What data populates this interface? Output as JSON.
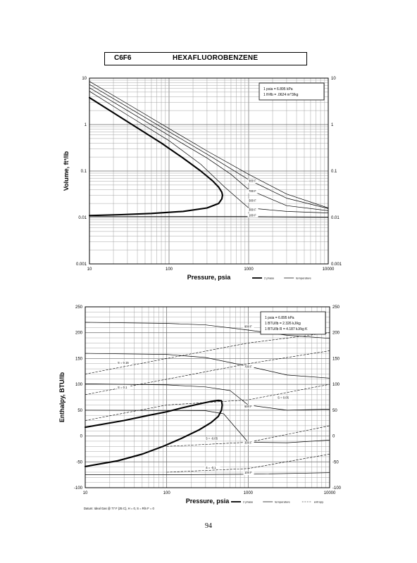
{
  "header": {
    "formula": "C6F6",
    "name": "HEXAFLUOROBENZENE"
  },
  "page_number": "94",
  "chart_data": [
    {
      "type": "line",
      "xlabel": "Pressure,  psia",
      "ylabel": "Volume, ft^3/lb",
      "xscale": "log",
      "yscale": "log",
      "xlim": [
        10,
        10000
      ],
      "ylim": [
        0.001,
        10
      ],
      "x_ticks": [
        "10",
        "100",
        "1000",
        "10000"
      ],
      "y_ticks": [
        "0.001",
        "0.01",
        "0.1",
        "1",
        "10"
      ],
      "grid": true,
      "conversion_box": [
        "1 psia = 6.895 kPa",
        "1 ft^3/lb = .0624 m^3/kg"
      ],
      "legend": {
        "position": "below-right",
        "entries": [
          {
            "label": "2 phase",
            "style": "thick"
          },
          {
            "label": "temperature",
            "style": "thin"
          }
        ]
      },
      "series": [
        {
          "name": "2 phase",
          "style": "thick",
          "x": [
            10,
            20,
            40,
            80,
            150,
            250,
            350,
            420,
            460,
            470,
            460,
            420,
            300,
            150,
            60,
            25,
            10
          ],
          "y": [
            3.8,
            1.8,
            0.85,
            0.4,
            0.19,
            0.1,
            0.062,
            0.045,
            0.035,
            0.03,
            0.025,
            0.02,
            0.016,
            0.0135,
            0.0122,
            0.0115,
            0.011
          ]
        },
        {
          "name": "100 F",
          "style": "thin",
          "x": [
            10,
            100,
            1000,
            10000
          ],
          "y": [
            0.0106,
            0.01055,
            0.0105,
            0.0102
          ]
        },
        {
          "name": "300 F",
          "style": "thin",
          "x": [
            10,
            30,
            100,
            250,
            500,
            1000,
            3000,
            10000
          ],
          "y": [
            5.2,
            1.6,
            0.45,
            0.14,
            0.045,
            0.016,
            0.0135,
            0.0125
          ]
        },
        {
          "name": "500 F",
          "style": "thin",
          "x": [
            10,
            30,
            100,
            300,
            600,
            1000,
            3000,
            10000
          ],
          "y": [
            6.2,
            2.0,
            0.58,
            0.19,
            0.085,
            0.04,
            0.018,
            0.014
          ]
        },
        {
          "name": "700 F",
          "style": "thin",
          "x": [
            10,
            30,
            100,
            300,
            1000,
            3000,
            10000
          ],
          "y": [
            7.3,
            2.4,
            0.7,
            0.23,
            0.065,
            0.026,
            0.0155
          ]
        },
        {
          "name": "900 F",
          "style": "thin",
          "x": [
            10,
            30,
            100,
            300,
            1000,
            3000,
            10000
          ],
          "y": [
            8.5,
            2.8,
            0.82,
            0.27,
            0.085,
            0.032,
            0.016
          ]
        }
      ],
      "curve_labels": [
        {
          "text": "900 F",
          "x": 1000,
          "y": 0.058
        },
        {
          "text": "700 F",
          "x": 1000,
          "y": 0.035
        },
        {
          "text": "500 F",
          "x": 1000,
          "y": 0.022
        },
        {
          "text": "300 F",
          "x": 1000,
          "y": 0.014
        },
        {
          "text": "100 F",
          "x": 1000,
          "y": 0.0105
        }
      ]
    },
    {
      "type": "line",
      "xlabel": "Pressure,  psia",
      "ylabel": "Enthalpy, BTU/lb",
      "xscale": "log",
      "yscale": "linear",
      "xlim": [
        10,
        10000
      ],
      "ylim": [
        -100,
        250
      ],
      "x_ticks": [
        "10",
        "100",
        "1000",
        "10000"
      ],
      "y_ticks": [
        "-100",
        "-50",
        "0",
        "50",
        "100",
        "150",
        "200",
        "250"
      ],
      "grid": true,
      "conversion_box": [
        "1 psia = 6.895 kPa",
        "1 BTU/lb = 2.326 kJ/kg",
        "1 BTU/lb R = 4.187 kJ/kg K"
      ],
      "footnote": "Datum: Ideal Gas @ 77 F (25 C),  H = 0,  S = Rln F = 0",
      "legend": {
        "position": "below-right",
        "entries": [
          {
            "label": "2 phase",
            "style": "thick"
          },
          {
            "label": "temperature",
            "style": "thin"
          },
          {
            "label": "entropy",
            "style": "dashed"
          }
        ]
      },
      "series": [
        {
          "name": "2 phase",
          "style": "thick",
          "x": [
            10,
            30,
            60,
            100,
            150,
            250,
            350,
            430,
            470,
            480,
            470,
            430,
            350,
            250,
            150,
            90,
            50,
            25,
            10
          ],
          "y": [
            17,
            30,
            40,
            47,
            54,
            62,
            67,
            69,
            68,
            60,
            50,
            38,
            26,
            12,
            -5,
            -20,
            -35,
            -48,
            -59
          ]
        },
        {
          "name": "100 F",
          "style": "thin",
          "x": [
            10,
            100,
            1000,
            10000
          ],
          "y": [
            -75,
            -75,
            -74,
            -71
          ]
        },
        {
          "name": "300 F",
          "style": "thin",
          "x": [
            10,
            300,
            500,
            1000,
            3000,
            10000
          ],
          "y": [
            50,
            49,
            43,
            -12,
            -13,
            -8
          ]
        },
        {
          "name": "500 F",
          "style": "thin",
          "x": [
            10,
            100,
            300,
            600,
            1000,
            3000,
            10000
          ],
          "y": [
            101,
            99,
            95,
            88,
            60,
            50,
            52
          ]
        },
        {
          "name": "700 F",
          "style": "thin",
          "x": [
            10,
            100,
            300,
            1000,
            3000,
            10000
          ],
          "y": [
            160,
            158,
            152,
            135,
            118,
            112
          ]
        },
        {
          "name": "900 F",
          "style": "thin",
          "x": [
            10,
            100,
            300,
            1000,
            3000,
            10000
          ],
          "y": [
            220,
            218,
            215,
            205,
            195,
            189
          ]
        },
        {
          "name": "S = 0.15",
          "style": "dashed",
          "x": [
            10,
            100,
            1000,
            10000
          ],
          "y": [
            120,
            150,
            180,
            200
          ]
        },
        {
          "name": "S = 0.1",
          "style": "dashed",
          "x": [
            10,
            100,
            1000,
            10000
          ],
          "y": [
            80,
            110,
            140,
            165
          ]
        },
        {
          "name": "S = 0.05",
          "style": "dashed",
          "x": [
            10,
            100,
            1000,
            10000
          ],
          "y": [
            30,
            60,
            70,
            100
          ]
        },
        {
          "name": "S = -0.05",
          "style": "dashed",
          "x": [
            100,
            1000,
            10000
          ],
          "y": [
            -20,
            -12,
            20
          ]
        },
        {
          "name": "S = -0.1",
          "style": "dashed",
          "x": [
            100,
            1000,
            10000
          ],
          "y": [
            -70,
            -63,
            -35
          ]
        }
      ],
      "curve_labels": [
        {
          "text": "900 F",
          "x": 900,
          "y": 210
        },
        {
          "text": "700 F",
          "x": 900,
          "y": 132
        },
        {
          "text": "500 F",
          "x": 900,
          "y": 55
        },
        {
          "text": "300 F",
          "x": 900,
          "y": -15
        },
        {
          "text": "100 F",
          "x": 900,
          "y": -73
        },
        {
          "text": "S = 0.15",
          "x": 25,
          "y": 140
        },
        {
          "text": "S = 0.1",
          "x": 25,
          "y": 92
        },
        {
          "text": "S = 0.05",
          "x": 2300,
          "y": 72
        },
        {
          "text": "S = -0.05",
          "x": 300,
          "y": -7
        },
        {
          "text": "S = -0.1",
          "x": 300,
          "y": -63
        }
      ]
    }
  ]
}
